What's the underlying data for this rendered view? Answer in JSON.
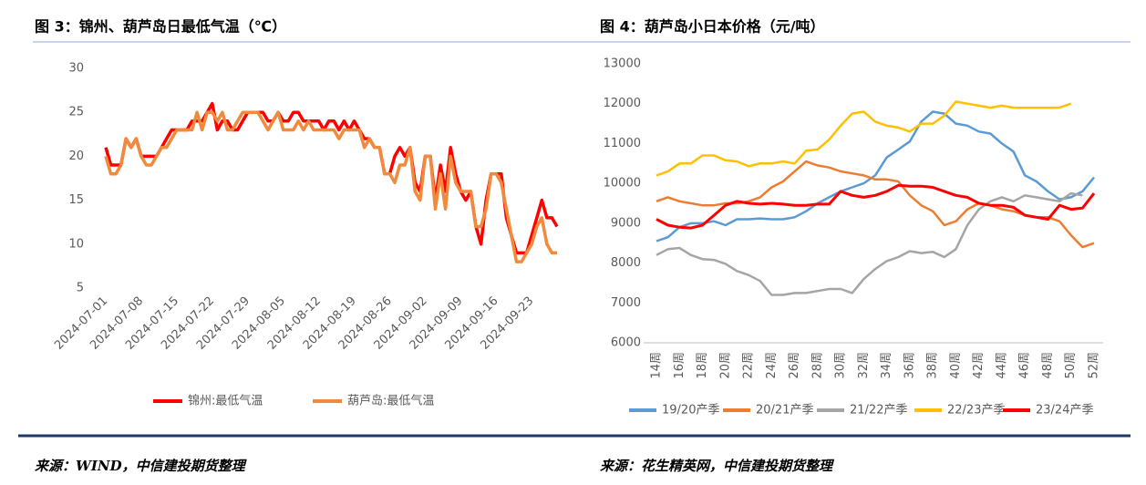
{
  "chart_data": [
    {
      "type": "line",
      "title": "图 3：锦州、葫芦岛日最低气温（℃）",
      "source": "来源：WIND，中信建投期货整理",
      "categories": [
        "2024-07-01",
        null,
        null,
        null,
        null,
        null,
        null,
        "2024-07-08",
        null,
        null,
        null,
        null,
        null,
        null,
        "2024-07-15",
        null,
        null,
        null,
        null,
        null,
        null,
        "2024-07-22",
        null,
        null,
        null,
        null,
        null,
        null,
        "2024-07-29",
        null,
        null,
        null,
        null,
        null,
        null,
        "2024-08-05",
        null,
        null,
        null,
        null,
        null,
        null,
        "2024-08-12",
        null,
        null,
        null,
        null,
        null,
        null,
        "2024-08-19",
        null,
        null,
        null,
        null,
        null,
        null,
        "2024-08-26",
        null,
        null,
        null,
        null,
        null,
        null,
        "2024-09-02",
        null,
        null,
        null,
        null,
        null,
        null,
        "2024-09-09",
        null,
        null,
        null,
        null,
        null,
        null,
        "2024-09-16",
        null,
        null,
        null,
        null,
        null,
        null,
        "2024-09-23",
        null,
        null,
        null,
        null,
        null
      ],
      "series": [
        {
          "name": "锦州:最低气温",
          "color": "#ff0000",
          "values": [
            21,
            19,
            19,
            19,
            22,
            21,
            22,
            20,
            20,
            20,
            20,
            21,
            22,
            23,
            23,
            23,
            23,
            24,
            24,
            24,
            25,
            26,
            23,
            24,
            24,
            23,
            23,
            24,
            25,
            25,
            25,
            25,
            24,
            24,
            25,
            24,
            24,
            25,
            25,
            24,
            24,
            24,
            24,
            23,
            24,
            24,
            23,
            24,
            23,
            24,
            23,
            22,
            22,
            21,
            21,
            18,
            18,
            20,
            21,
            20,
            21,
            17,
            16,
            20,
            20,
            15,
            19,
            16,
            21,
            18,
            16,
            15,
            16,
            12,
            10,
            15,
            18,
            18,
            18,
            13,
            11,
            9,
            9,
            9,
            11,
            13,
            15,
            13,
            13,
            12
          ]
        },
        {
          "name": "葫芦岛:最低气温",
          "color": "#f08a3c",
          "values": [
            20,
            18,
            18,
            19,
            22,
            21,
            22,
            20,
            19,
            19,
            20,
            21,
            21,
            22,
            23,
            23,
            23,
            23,
            25,
            23,
            25,
            25,
            24,
            25,
            23,
            23,
            24,
            25,
            25,
            25,
            25,
            24,
            23,
            24,
            25,
            23,
            23,
            23,
            24,
            23,
            24,
            23,
            23,
            23,
            23,
            23,
            22,
            23,
            23,
            23,
            23,
            21,
            22,
            21,
            21,
            18,
            18,
            17,
            19,
            19,
            21,
            16,
            15,
            20,
            20,
            14,
            18,
            14,
            20,
            17,
            16,
            16,
            16,
            12,
            12,
            14,
            18,
            18,
            17,
            14,
            11,
            8,
            8,
            9,
            10,
            12,
            13,
            10,
            9,
            9
          ]
        }
      ],
      "ylim": [
        5,
        30
      ],
      "yticks": [
        5,
        10,
        15,
        20,
        25,
        30
      ],
      "grid": false
    },
    {
      "type": "line",
      "title": "图 4：葫芦岛小日本价格（元/吨）",
      "source": "来源：花生精英网，中信建投期货整理",
      "categories": [
        "14周",
        null,
        "16周",
        null,
        "18周",
        null,
        "20周",
        null,
        "22周",
        null,
        "24周",
        null,
        "26周",
        null,
        "28周",
        null,
        "30周",
        null,
        "32周",
        null,
        "34周",
        null,
        "36周",
        null,
        "38周",
        null,
        "40周",
        null,
        "42周",
        null,
        "44周",
        null,
        "46周",
        null,
        "48周",
        null,
        "50周",
        null,
        "52周"
      ],
      "series": [
        {
          "name": "19/20产季",
          "color": "#5b9bd5",
          "values": [
            8550,
            8650,
            8900,
            9000,
            9000,
            9050,
            8950,
            9100,
            9100,
            9120,
            9100,
            9100,
            9150,
            9300,
            9500,
            9650,
            9800,
            9900,
            10000,
            10200,
            10650,
            10850,
            11050,
            11550,
            11800,
            11750,
            11500,
            11450,
            11300,
            11250,
            11000,
            10800,
            10200,
            10050,
            9800,
            9600,
            9650,
            9800,
            10150
          ]
        },
        {
          "name": "20/21产季",
          "color": "#ed7d31",
          "values": [
            9550,
            9650,
            9550,
            9500,
            9450,
            9450,
            9500,
            9500,
            9550,
            9650,
            9900,
            10050,
            10300,
            10550,
            10450,
            10400,
            10300,
            10250,
            10200,
            10100,
            10100,
            10050,
            9700,
            9450,
            9300,
            8950,
            9050,
            9350,
            9500,
            9450,
            9350,
            9300,
            9200,
            9150,
            9150,
            9050,
            8700,
            8400,
            8500
          ]
        },
        {
          "name": "21/22产季",
          "color": "#a5a5a5",
          "values": [
            8200,
            8350,
            8380,
            8200,
            8100,
            8080,
            7980,
            7800,
            7700,
            7550,
            7200,
            7200,
            7250,
            7250,
            7300,
            7350,
            7350,
            7250,
            7600,
            7850,
            8050,
            8150,
            8300,
            8250,
            8280,
            8150,
            8350,
            8950,
            9350,
            9550,
            9650,
            9550,
            9700,
            9650,
            9600,
            9550,
            9750,
            9700,
            null
          ]
        },
        {
          "name": "22/23产季",
          "color": "#ffc000",
          "values": [
            10200,
            10300,
            10500,
            10500,
            10700,
            10700,
            10580,
            10550,
            10430,
            10500,
            10500,
            10550,
            10500,
            10820,
            10850,
            11100,
            11450,
            11750,
            11800,
            11550,
            11450,
            11400,
            11300,
            11500,
            11500,
            11700,
            12050,
            12000,
            11950,
            11900,
            11950,
            11900,
            11900,
            11900,
            11900,
            11900,
            12000,
            null,
            null
          ]
        },
        {
          "name": "23/24产季",
          "color": "#ff0000",
          "values": [
            9100,
            8950,
            8900,
            8880,
            8950,
            9200,
            9450,
            9550,
            9500,
            9480,
            9500,
            9480,
            9450,
            9450,
            9480,
            9480,
            9800,
            9700,
            9650,
            9700,
            9800,
            9950,
            9930,
            9930,
            9900,
            9800,
            9700,
            9650,
            9500,
            9450,
            9450,
            9400,
            9200,
            9150,
            9100,
            9450,
            9350,
            9380,
            9750
          ]
        }
      ],
      "ylim": [
        6000,
        13000
      ],
      "yticks": [
        6000,
        7000,
        8000,
        9000,
        10000,
        11000,
        12000,
        13000
      ],
      "grid": false
    }
  ]
}
